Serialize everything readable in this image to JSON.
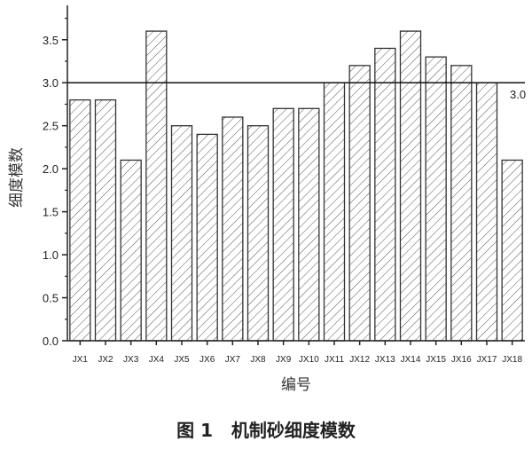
{
  "chart_data": {
    "type": "bar",
    "title": "",
    "caption": "图 1   机制砂细度模数",
    "xlabel": "编号",
    "ylabel": "细度模数",
    "categories": [
      "JX1",
      "JX2",
      "JX3",
      "JX4",
      "JX5",
      "JX6",
      "JX7",
      "JX8",
      "JX9",
      "JX10",
      "JX11",
      "JX12",
      "JX13",
      "JX14",
      "JX15",
      "JX16",
      "JX17",
      "JX18"
    ],
    "values": [
      2.8,
      2.8,
      2.1,
      3.6,
      2.5,
      2.4,
      2.6,
      2.5,
      2.7,
      2.7,
      3.0,
      3.2,
      3.4,
      3.6,
      3.3,
      3.2,
      3.0,
      2.1
    ],
    "ylim": [
      0,
      3.9
    ],
    "yticks": [
      "0.0",
      "0.5",
      "1.0",
      "1.5",
      "2.0",
      "2.5",
      "3.0",
      "3.5"
    ],
    "reference_line": {
      "value": 3.0,
      "label": "3.0"
    },
    "bar_fill": "hatched",
    "bar_color": "#333333",
    "grid": false
  }
}
